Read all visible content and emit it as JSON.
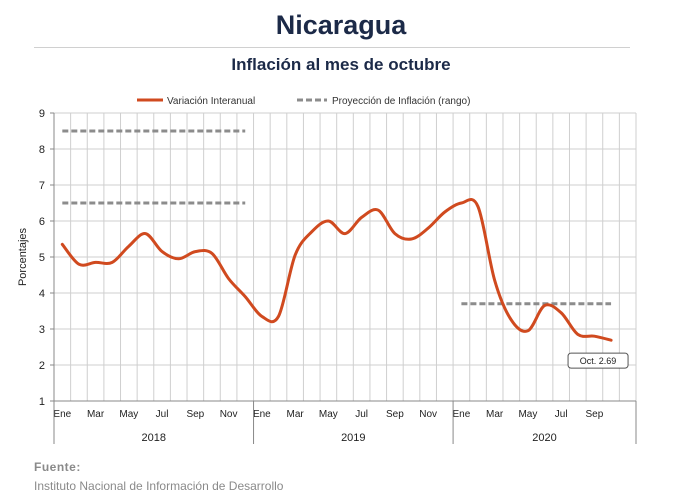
{
  "header": {
    "title": "Nicaragua",
    "subtitle": "Inflación al mes de octubre"
  },
  "source": {
    "label": "Fuente:",
    "text": "Instituto Nacional de Información de  Desarrollo"
  },
  "colors": {
    "series_line": "#d04a1f",
    "projection": "#8c8c8c",
    "grid": "#cfcfcf",
    "title": "#1c2a48"
  },
  "chart_data": {
    "type": "line",
    "ylabel": "Porcentajes",
    "ylim": [
      1,
      9
    ],
    "yticks": [
      1,
      2,
      3,
      4,
      5,
      6,
      7,
      8,
      9
    ],
    "grid": true,
    "legend_position": "top-center",
    "x": [
      "2018-01",
      "2018-02",
      "2018-03",
      "2018-04",
      "2018-05",
      "2018-06",
      "2018-07",
      "2018-08",
      "2018-09",
      "2018-10",
      "2018-11",
      "2018-12",
      "2019-01",
      "2019-02",
      "2019-03",
      "2019-04",
      "2019-05",
      "2019-06",
      "2019-07",
      "2019-08",
      "2019-09",
      "2019-10",
      "2019-11",
      "2019-12",
      "2020-01",
      "2020-02",
      "2020-03",
      "2020-04",
      "2020-05",
      "2020-06",
      "2020-07",
      "2020-08",
      "2020-09",
      "2020-10"
    ],
    "month_tick_labels": [
      "Ene",
      "",
      "Mar",
      "",
      "May",
      "",
      "Jul",
      "",
      "Sep",
      "",
      "Nov",
      "",
      "Ene",
      "",
      "Mar",
      "",
      "May",
      "",
      "Jul",
      "",
      "Sep",
      "",
      "Nov",
      "",
      "Ene",
      "",
      "Mar",
      "",
      "May",
      "",
      "Jul",
      "",
      "Sep",
      ""
    ],
    "year_labels": [
      "2018",
      "2019",
      "2020"
    ],
    "series": [
      {
        "name": "Variación Interanual",
        "values": [
          5.35,
          4.8,
          4.85,
          4.85,
          5.3,
          5.65,
          5.15,
          4.95,
          5.15,
          5.1,
          4.4,
          3.9,
          3.35,
          3.35,
          5.05,
          5.7,
          6.0,
          5.65,
          6.1,
          6.3,
          5.65,
          5.5,
          5.8,
          6.25,
          6.5,
          6.4,
          4.35,
          3.25,
          2.95,
          3.65,
          3.45,
          2.85,
          2.8,
          2.69
        ]
      }
    ],
    "projection": {
      "name": "Proyección de Inflación (rango)",
      "segments": [
        {
          "from": "2018-01",
          "to": "2018-12",
          "value": 8.5
        },
        {
          "from": "2018-01",
          "to": "2018-12",
          "value": 6.5
        },
        {
          "from": "2020-01",
          "to": "2020-10",
          "value": 3.7
        }
      ]
    },
    "annotation": {
      "text": "Oct. 2.69",
      "x": "2020-10",
      "y": 2.69
    }
  }
}
